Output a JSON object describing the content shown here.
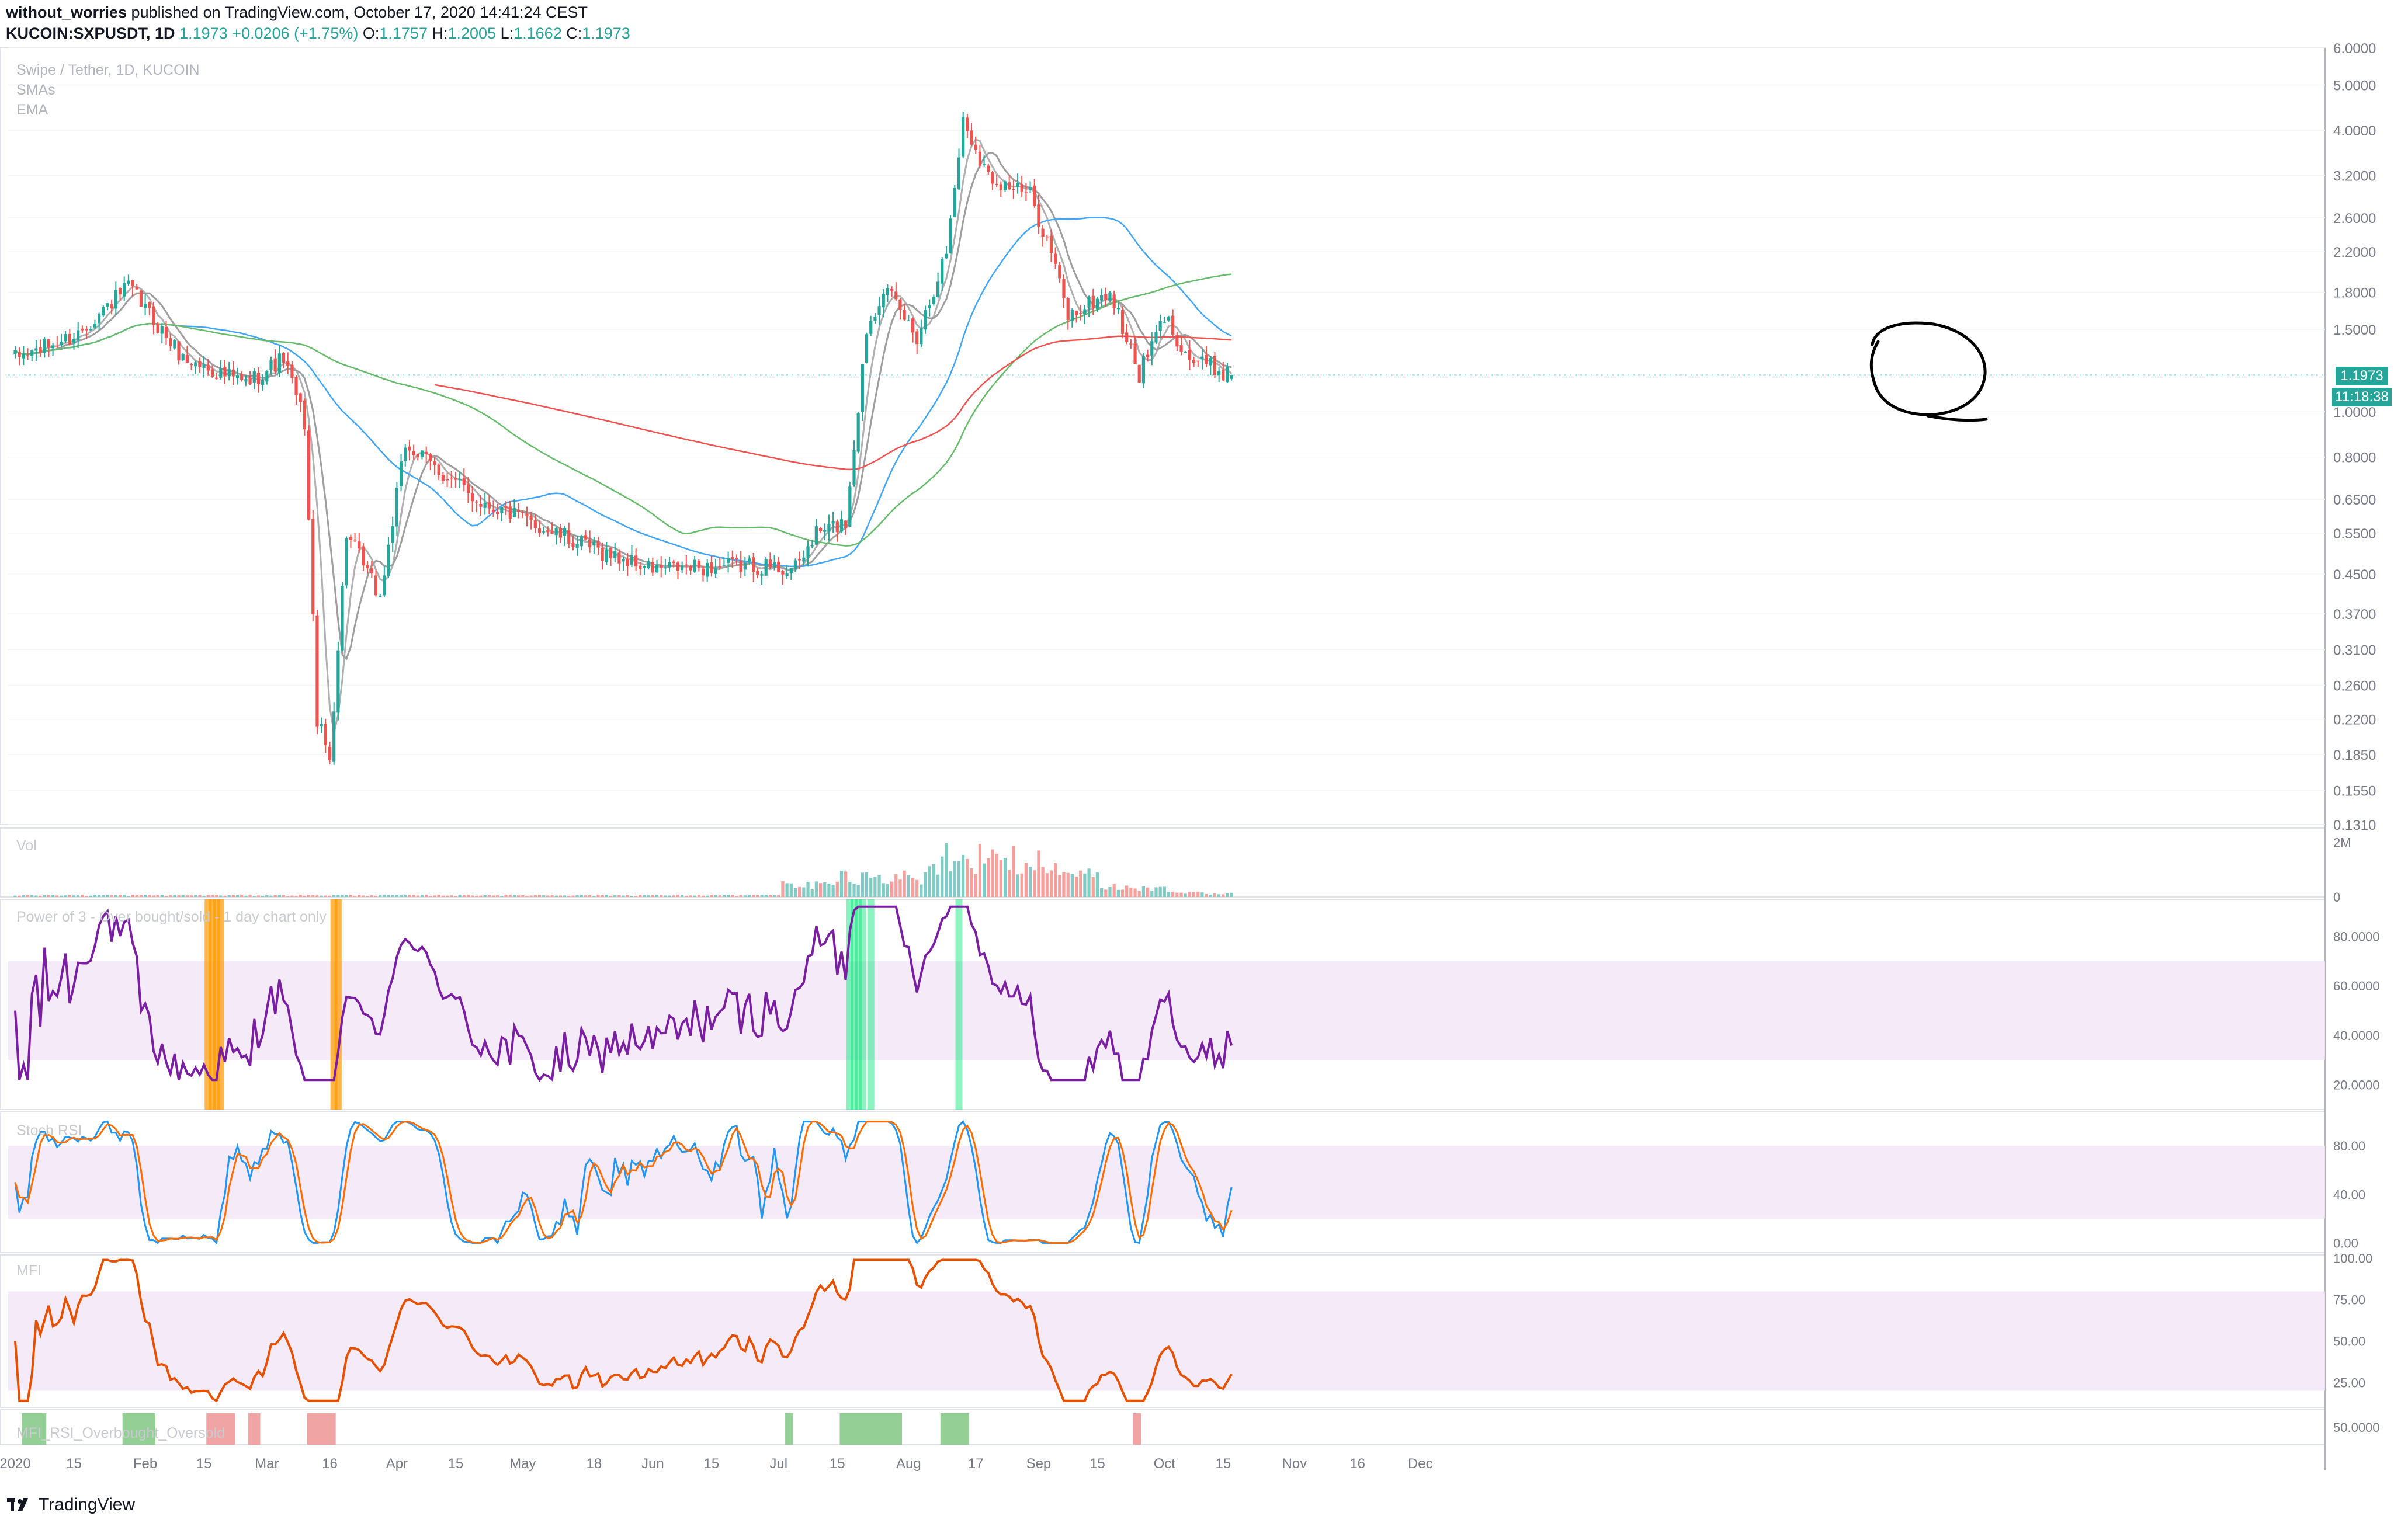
{
  "header": {
    "author": "without_worries",
    "published_text": "published on TradingView.com, October 17, 2020 14:41:24 CEST",
    "symbol": "KUCOIN:SXPUSDT, 1D",
    "price": "1.1973",
    "change": "+0.0206 (+1.75%)",
    "o_label": "O:",
    "o_value": "1.1757",
    "h_label": "H:",
    "h_value": "1.2005",
    "l_label": "L:",
    "l_value": "1.1662",
    "c_label": "C:",
    "c_value": "1.1973"
  },
  "overlays": {
    "pair": "Swipe / Tether, 1D, KUCOIN",
    "sma": "SMAs",
    "ema": "EMA"
  },
  "price_badge": "1.1973",
  "countdown_badge": "11:18:38",
  "pane_labels": {
    "vol": "Vol",
    "power": "Power of 3 - Over bought/sold - 1 day chart only",
    "stoch": "Stoch RSI",
    "mfi": "MFI",
    "mfi_signal": "MFI_RSI_Overbought_Oversold"
  },
  "footer": {
    "brand": "TradingView"
  },
  "colors": {
    "up": "#26a69a",
    "down": "#ef5350",
    "sma_fast": "#9e9e9e",
    "sma_blue": "#42a5f5",
    "sma_green": "#66bb6a",
    "ema_red": "#ef5350",
    "power_line": "#7b1fa2",
    "stoch_k": "#2196f3",
    "stoch_d": "#ff6d00",
    "mfi_line": "#e65100",
    "band_fill": "#f3e5f5",
    "hl_orange": "#ff9800",
    "hl_green": "#00e676"
  },
  "chart_data": [
    {
      "type": "candlestick",
      "title": "Swipe / Tether, 1D, KUCOIN",
      "scale": "log",
      "ylim": [
        0.131,
        6.0
      ],
      "y_ticks": [
        "6.0000",
        "5.0000",
        "4.0000",
        "3.2000",
        "2.6000",
        "2.2000",
        "1.8000",
        "1.5000",
        "1.0000",
        "0.8000",
        "0.6500",
        "0.5500",
        "0.4500",
        "0.3700",
        "0.3100",
        "0.2600",
        "0.2200",
        "0.1850",
        "0.1550",
        "0.1310"
      ],
      "x_ticks": [
        "2020",
        "15",
        "Feb",
        "15",
        "Mar",
        "16",
        "Apr",
        "15",
        "May",
        "18",
        "Jun",
        "15",
        "Jul",
        "15",
        "Aug",
        "17",
        "Sep",
        "15",
        "Oct",
        "15",
        "Nov",
        "16",
        "Dec"
      ],
      "anchors_close": [
        {
          "date": "2020-01-01",
          "v": 1.3
        },
        {
          "date": "2020-01-15",
          "v": 1.45
        },
        {
          "date": "2020-01-28",
          "v": 1.85
        },
        {
          "date": "2020-02-10",
          "v": 1.3
        },
        {
          "date": "2020-02-25",
          "v": 1.15
        },
        {
          "date": "2020-03-05",
          "v": 1.3
        },
        {
          "date": "2020-03-10",
          "v": 0.95
        },
        {
          "date": "2020-03-13",
          "v": 0.22
        },
        {
          "date": "2020-03-16",
          "v": 0.18
        },
        {
          "date": "2020-03-20",
          "v": 0.55
        },
        {
          "date": "2020-03-28",
          "v": 0.4
        },
        {
          "date": "2020-04-03",
          "v": 0.85
        },
        {
          "date": "2020-04-20",
          "v": 0.65
        },
        {
          "date": "2020-05-15",
          "v": 0.52
        },
        {
          "date": "2020-06-01",
          "v": 0.46
        },
        {
          "date": "2020-06-25",
          "v": 0.47
        },
        {
          "date": "2020-07-05",
          "v": 0.46
        },
        {
          "date": "2020-07-10",
          "v": 0.55
        },
        {
          "date": "2020-07-17",
          "v": 0.58
        },
        {
          "date": "2020-07-22",
          "v": 1.5
        },
        {
          "date": "2020-07-26",
          "v": 1.85
        },
        {
          "date": "2020-08-03",
          "v": 1.45
        },
        {
          "date": "2020-08-10",
          "v": 2.2
        },
        {
          "date": "2020-08-14",
          "v": 4.2
        },
        {
          "date": "2020-08-20",
          "v": 3.2
        },
        {
          "date": "2020-08-30",
          "v": 2.9
        },
        {
          "date": "2020-09-04",
          "v": 2.2
        },
        {
          "date": "2020-09-08",
          "v": 1.6
        },
        {
          "date": "2020-09-18",
          "v": 1.8
        },
        {
          "date": "2020-09-25",
          "v": 1.2
        },
        {
          "date": "2020-10-01",
          "v": 1.6
        },
        {
          "date": "2020-10-07",
          "v": 1.3
        },
        {
          "date": "2020-10-17",
          "v": 1.1973
        }
      ],
      "last": {
        "o": 1.1757,
        "h": 1.2005,
        "l": 1.1662,
        "c": 1.1973
      },
      "moving_averages": [
        "SMA fast (gray)",
        "SMA mid (blue)",
        "SMA slow (green)",
        "EMA (red)"
      ]
    },
    {
      "type": "bar",
      "title": "Vol",
      "y_ticks": [
        "2M",
        "0"
      ]
    },
    {
      "type": "line",
      "title": "Power of 3 - Over bought/sold - 1 day chart only",
      "ylim": [
        10,
        95
      ],
      "y_ticks": [
        "80.0000",
        "60.0000",
        "40.0000",
        "20.0000"
      ],
      "band": [
        30,
        70
      ],
      "oversold_dates": [
        "2020-02-16",
        "2020-02-17",
        "2020-02-18",
        "2020-02-19",
        "2020-03-17",
        "2020-03-18"
      ],
      "overbought_dates": [
        "2020-07-18",
        "2020-07-19",
        "2020-07-20",
        "2020-07-21",
        "2020-07-23",
        "2020-08-13"
      ]
    },
    {
      "type": "line",
      "title": "Stoch RSI",
      "ylim": [
        -8,
        108
      ],
      "y_ticks": [
        "80.00",
        "40.00",
        "0.00"
      ],
      "band": [
        20,
        80
      ],
      "series": [
        {
          "name": "K",
          "color": "#2196f3"
        },
        {
          "name": "D",
          "color": "#ff6d00"
        }
      ]
    },
    {
      "type": "line",
      "title": "MFI",
      "ylim": [
        10,
        102
      ],
      "y_ticks": [
        "100.00",
        "75.00",
        "50.00",
        "25.00"
      ],
      "band": [
        20,
        80
      ],
      "series": [
        {
          "name": "MFI",
          "color": "#e65100"
        }
      ]
    },
    {
      "type": "bar",
      "title": "MFI_RSI_Overbought_Oversold",
      "y_ticks": [
        "50.0000"
      ],
      "green_ranges": [
        [
          "2020-01-03",
          "2020-01-08"
        ],
        [
          "2020-01-27",
          "2020-02-03"
        ],
        [
          "2020-07-03",
          "2020-07-04"
        ],
        [
          "2020-07-16",
          "2020-07-30"
        ],
        [
          "2020-08-09",
          "2020-08-15"
        ]
      ],
      "red_ranges": [
        [
          "2020-02-16",
          "2020-02-22"
        ],
        [
          "2020-02-26",
          "2020-02-28"
        ],
        [
          "2020-03-11",
          "2020-03-17"
        ],
        [
          "2020-09-24",
          "2020-09-25"
        ]
      ]
    }
  ]
}
